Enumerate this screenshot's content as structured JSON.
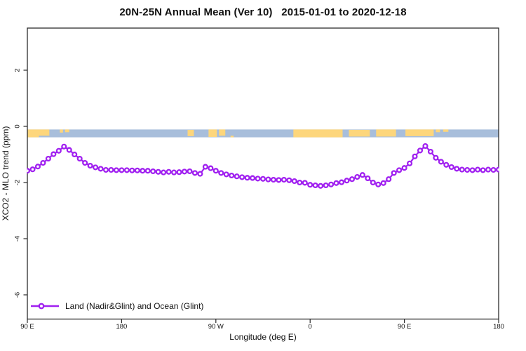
{
  "page": {
    "background": "#ffffff"
  },
  "header": {
    "title": "20N-25N Annual Mean (Ver 10)   2015-01-01 to 2020-12-18"
  },
  "legend": {
    "label": "Land (Nadir&Glint) and Ocean (Glint)"
  },
  "chart_data": {
    "type": "line",
    "title": "20N-25N Annual Mean (Ver 10)   2015-01-01 to 2020-12-18",
    "xlabel": "Longitude (deg E)",
    "ylabel": "XCO2 - MLO trend (ppm)",
    "x_note": "x axis spans 450 degrees of longitude, wrapping past the dateline (90E -> 180 -> 90W -> 0 -> 90E -> 180)",
    "xlim": [
      90,
      540
    ],
    "ylim": [
      -6.86,
      3.5
    ],
    "grid": false,
    "legend_position": "bottom-left inside plot",
    "xticks": [
      {
        "pos": 90,
        "label": "90 E"
      },
      {
        "pos": 180,
        "label": "180"
      },
      {
        "pos": 270,
        "label": "90 W"
      },
      {
        "pos": 360,
        "label": "0"
      },
      {
        "pos": 450,
        "label": "90 E"
      },
      {
        "pos": 540,
        "label": "180"
      }
    ],
    "yticks": [
      {
        "pos": 2,
        "label": "2"
      },
      {
        "pos": 0,
        "label": "0"
      },
      {
        "pos": -2,
        "label": "-2"
      },
      {
        "pos": -4,
        "label": "-4"
      },
      {
        "pos": -6,
        "label": "-6"
      }
    ],
    "x": [
      90,
      95,
      100,
      105,
      110,
      115,
      120,
      125,
      130,
      135,
      140,
      145,
      150,
      155,
      160,
      165,
      170,
      175,
      180,
      185,
      190,
      195,
      200,
      205,
      210,
      215,
      220,
      225,
      230,
      235,
      240,
      245,
      250,
      255,
      260,
      265,
      270,
      275,
      280,
      285,
      290,
      295,
      300,
      305,
      310,
      315,
      320,
      325,
      330,
      335,
      340,
      345,
      350,
      355,
      360,
      365,
      370,
      375,
      380,
      385,
      390,
      395,
      400,
      405,
      410,
      415,
      420,
      425,
      430,
      435,
      440,
      445,
      450,
      455,
      460,
      465,
      470,
      475,
      480,
      485,
      490,
      495,
      500,
      505,
      510,
      515,
      520,
      525,
      530,
      535,
      540
    ],
    "series": [
      {
        "name": "Land (Nadir&Glint) and Ocean (Glint)",
        "color": "#A020F0",
        "marker": "open-circle",
        "values": [
          -1.58,
          -1.53,
          -1.43,
          -1.3,
          -1.15,
          -0.99,
          -0.87,
          -0.72,
          -0.84,
          -1.0,
          -1.15,
          -1.3,
          -1.4,
          -1.46,
          -1.51,
          -1.55,
          -1.55,
          -1.56,
          -1.56,
          -1.56,
          -1.57,
          -1.57,
          -1.58,
          -1.58,
          -1.6,
          -1.62,
          -1.64,
          -1.62,
          -1.64,
          -1.63,
          -1.61,
          -1.6,
          -1.66,
          -1.69,
          -1.44,
          -1.49,
          -1.58,
          -1.66,
          -1.71,
          -1.75,
          -1.78,
          -1.81,
          -1.83,
          -1.84,
          -1.86,
          -1.87,
          -1.89,
          -1.9,
          -1.91,
          -1.9,
          -1.92,
          -1.95,
          -2.0,
          -2.01,
          -2.08,
          -2.1,
          -2.12,
          -2.1,
          -2.07,
          -2.02,
          -1.99,
          -1.93,
          -1.88,
          -1.8,
          -1.73,
          -1.85,
          -2.0,
          -2.07,
          -2.02,
          -1.88,
          -1.66,
          -1.56,
          -1.48,
          -1.32,
          -1.07,
          -0.86,
          -0.7,
          -0.9,
          -1.12,
          -1.26,
          -1.37,
          -1.45,
          -1.51,
          -1.54,
          -1.55,
          -1.56,
          -1.54,
          -1.56,
          -1.54,
          -1.55,
          -1.54
        ]
      }
    ],
    "map_strip": {
      "description": "thin world-map band drawn across the plot just below y=0",
      "ocean_color": "#a8bedb",
      "land_color": "#fdd67c",
      "y_top": -0.11,
      "y_bottom": -0.39,
      "land_segments": [
        {
          "from": 90,
          "to": 111,
          "t": 0,
          "b": 0.8
        },
        {
          "from": 90,
          "to": 101,
          "t": 0.75,
          "b": 1
        },
        {
          "from": 121,
          "to": 124,
          "t": 0,
          "b": 0.4
        },
        {
          "from": 126,
          "to": 130,
          "t": 0,
          "b": 0.35
        },
        {
          "from": 243,
          "to": 249,
          "t": 0.05,
          "b": 0.85
        },
        {
          "from": 263,
          "to": 271,
          "t": 0,
          "b": 0.95
        },
        {
          "from": 273,
          "to": 279,
          "t": 0,
          "b": 0.8
        },
        {
          "from": 284,
          "to": 287,
          "t": 0.8,
          "b": 1
        },
        {
          "from": 344,
          "to": 391,
          "t": 0,
          "b": 1
        },
        {
          "from": 397,
          "to": 417,
          "t": 0.05,
          "b": 0.9
        },
        {
          "from": 423,
          "to": 442,
          "t": 0,
          "b": 0.9
        },
        {
          "from": 451,
          "to": 478,
          "t": 0,
          "b": 0.85
        },
        {
          "from": 480,
          "to": 484,
          "t": 0,
          "b": 0.35
        },
        {
          "from": 487,
          "to": 492,
          "t": 0,
          "b": 0.3
        }
      ]
    },
    "axis_color": "#2b2b2b"
  }
}
